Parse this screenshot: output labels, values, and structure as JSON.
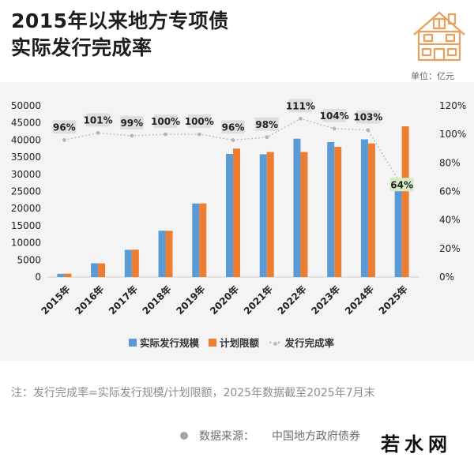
{
  "title": {
    "line1": "2015年以来地方专项债",
    "line2": "实际发行完成率"
  },
  "unit_label": "单位：亿元",
  "legend": {
    "actual": "实际发行规模",
    "plan": "计划限额",
    "rate": "发行完成率"
  },
  "note": "注：发行完成率=实际发行规模/计划限额，2025年数据截至2025年7月末",
  "source": {
    "label": "数据来源：",
    "text": "中国地方政府债券"
  },
  "brand": "若水网",
  "colors": {
    "actual": "#5b9bd5",
    "plan": "#ed7d31",
    "rate": "#bfbfbf",
    "badge_bg": "#dedede",
    "highlight_badge_bg": "#d6ecc7"
  },
  "chart_data": {
    "type": "bar",
    "categories": [
      "2015年",
      "2016年",
      "2017年",
      "2018年",
      "2019年",
      "2020年",
      "2021年",
      "2022年",
      "2023年",
      "2024年",
      "2025年"
    ],
    "series": [
      {
        "name": "实际发行规模",
        "kind": "bar",
        "axis": "left",
        "values": [
          959,
          4037,
          7961,
          13527,
          21487,
          35956,
          35844,
          40390,
          39393,
          40204,
          28000
        ]
      },
      {
        "name": "计划限额",
        "kind": "bar",
        "axis": "left",
        "values": [
          1000,
          4000,
          8000,
          13500,
          21500,
          37500,
          36500,
          36500,
          38000,
          39000,
          44000
        ]
      },
      {
        "name": "发行完成率",
        "kind": "line",
        "axis": "right",
        "values": [
          96,
          101,
          99,
          100,
          100,
          96,
          98,
          111,
          104,
          103,
          64
        ]
      }
    ],
    "data_labels": [
      "96%",
      "101%",
      "99%",
      "100%",
      "100%",
      "96%",
      "98%",
      "111%",
      "104%",
      "103%",
      "64%"
    ],
    "ylim_left": [
      0,
      50000
    ],
    "left_ticks": [
      "0",
      "5000",
      "10000",
      "15000",
      "20000",
      "25000",
      "30000",
      "35000",
      "40000",
      "45000",
      "50000"
    ],
    "ylim_right": [
      0,
      120
    ],
    "right_ticks": [
      "0%",
      "20%",
      "40%",
      "60%",
      "80%",
      "100%",
      "120%"
    ],
    "grid": false,
    "legend_position": "bottom"
  }
}
